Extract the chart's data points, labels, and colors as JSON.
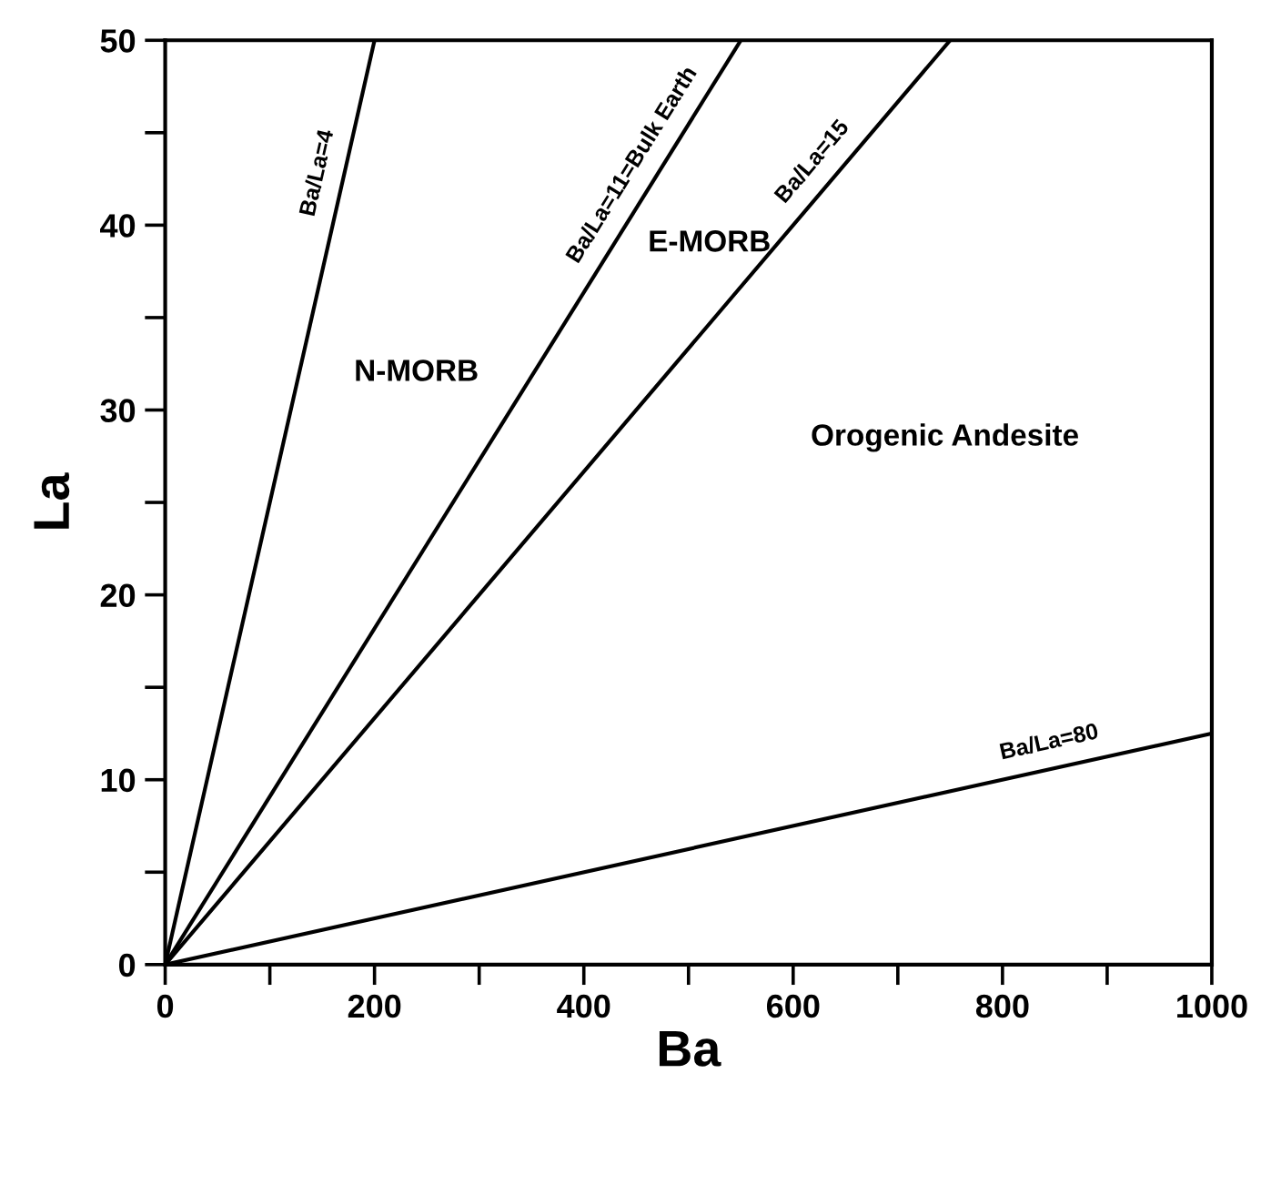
{
  "chart_data": {
    "type": "line",
    "xlabel": "Ba",
    "ylabel": "La",
    "series": [
      {
        "name": "Ba/La=4",
        "color": "#000000",
        "x": [
          0,
          200
        ],
        "values": [
          0,
          50
        ]
      },
      {
        "name": "Ba/La=11=Bulk Earth",
        "color": "#000000",
        "x": [
          0,
          550
        ],
        "values": [
          0,
          50
        ]
      },
      {
        "name": "Ba/La=15",
        "color": "#000000",
        "x": [
          0,
          750
        ],
        "values": [
          0,
          50
        ]
      },
      {
        "name": "Ba/La=80",
        "color": "#000000",
        "x": [
          0,
          1000
        ],
        "values": [
          0,
          12.5
        ]
      }
    ],
    "annotations": [
      "N-MORB",
      "E-MORB",
      "Orogenic Andesite"
    ],
    "xlim": [
      0,
      1000
    ],
    "ylim": [
      0,
      50
    ],
    "xticks": [
      0,
      {
        "value": 100,
        "label": null
      },
      200,
      {
        "value": 300,
        "label": null
      },
      400,
      {
        "value": 500,
        "label": null
      },
      600,
      {
        "value": 700,
        "label": null
      },
      800,
      {
        "value": 900,
        "label": null
      },
      1000
    ],
    "yticks": [
      0,
      {
        "value": 5,
        "label": null
      },
      10,
      {
        "value": 15,
        "label": null
      },
      20,
      {
        "value": 25,
        "label": null
      },
      30,
      {
        "value": 35,
        "label": null
      },
      40,
      {
        "value": 45,
        "label": null
      },
      50
    ],
    "grid": false,
    "legend": false,
    "marker": "none",
    "line_style": "solid"
  }
}
